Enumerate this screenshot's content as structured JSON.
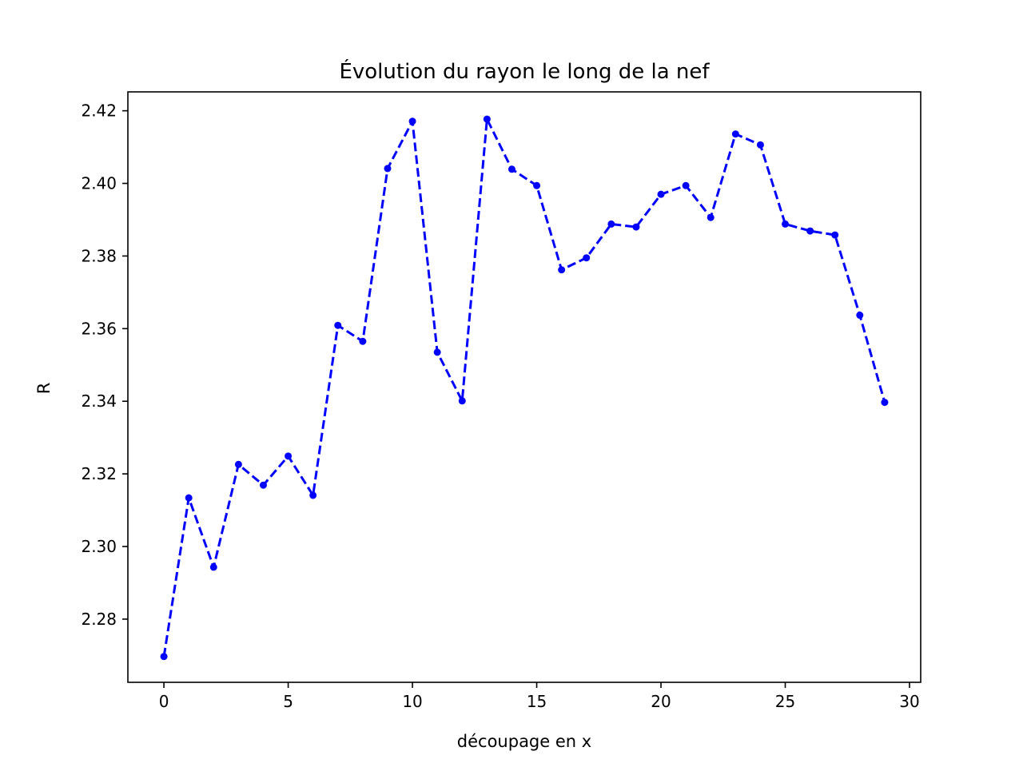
{
  "chart_data": {
    "type": "line",
    "title": "Évolution du rayon le long de la nef",
    "xlabel": "découpage en x",
    "ylabel": "R",
    "xlim": [
      -1.45,
      30.45
    ],
    "ylim": [
      2.2626,
      2.4252
    ],
    "xticks": [
      0,
      5,
      10,
      15,
      20,
      25,
      30
    ],
    "xtick_labels": [
      "0",
      "5",
      "10",
      "15",
      "20",
      "25",
      "30"
    ],
    "yticks": [
      2.28,
      2.3,
      2.32,
      2.34,
      2.36,
      2.38,
      2.4,
      2.42
    ],
    "ytick_labels": [
      "2.28",
      "2.30",
      "2.32",
      "2.34",
      "2.36",
      "2.38",
      "2.40",
      "2.42"
    ],
    "grid": false,
    "series": [
      {
        "color": "#0000ff",
        "line_style": "dashed",
        "marker": "circle",
        "x": [
          0,
          1,
          2,
          3,
          4,
          5,
          6,
          7,
          8,
          9,
          10,
          11,
          12,
          13,
          14,
          15,
          16,
          17,
          18,
          19,
          20,
          21,
          22,
          23,
          24,
          25,
          26,
          27,
          28,
          29
        ],
        "y": [
          2.2697,
          2.3134,
          2.2943,
          2.3226,
          2.3169,
          2.3249,
          2.3141,
          2.3609,
          2.3565,
          2.4041,
          2.4171,
          2.3535,
          2.3401,
          2.4177,
          2.4039,
          2.3994,
          2.3762,
          2.3795,
          2.3888,
          2.388,
          2.397,
          2.3994,
          2.3906,
          2.4136,
          2.4106,
          2.3888,
          2.3869,
          2.3858,
          2.3637,
          2.3397
        ]
      }
    ]
  }
}
